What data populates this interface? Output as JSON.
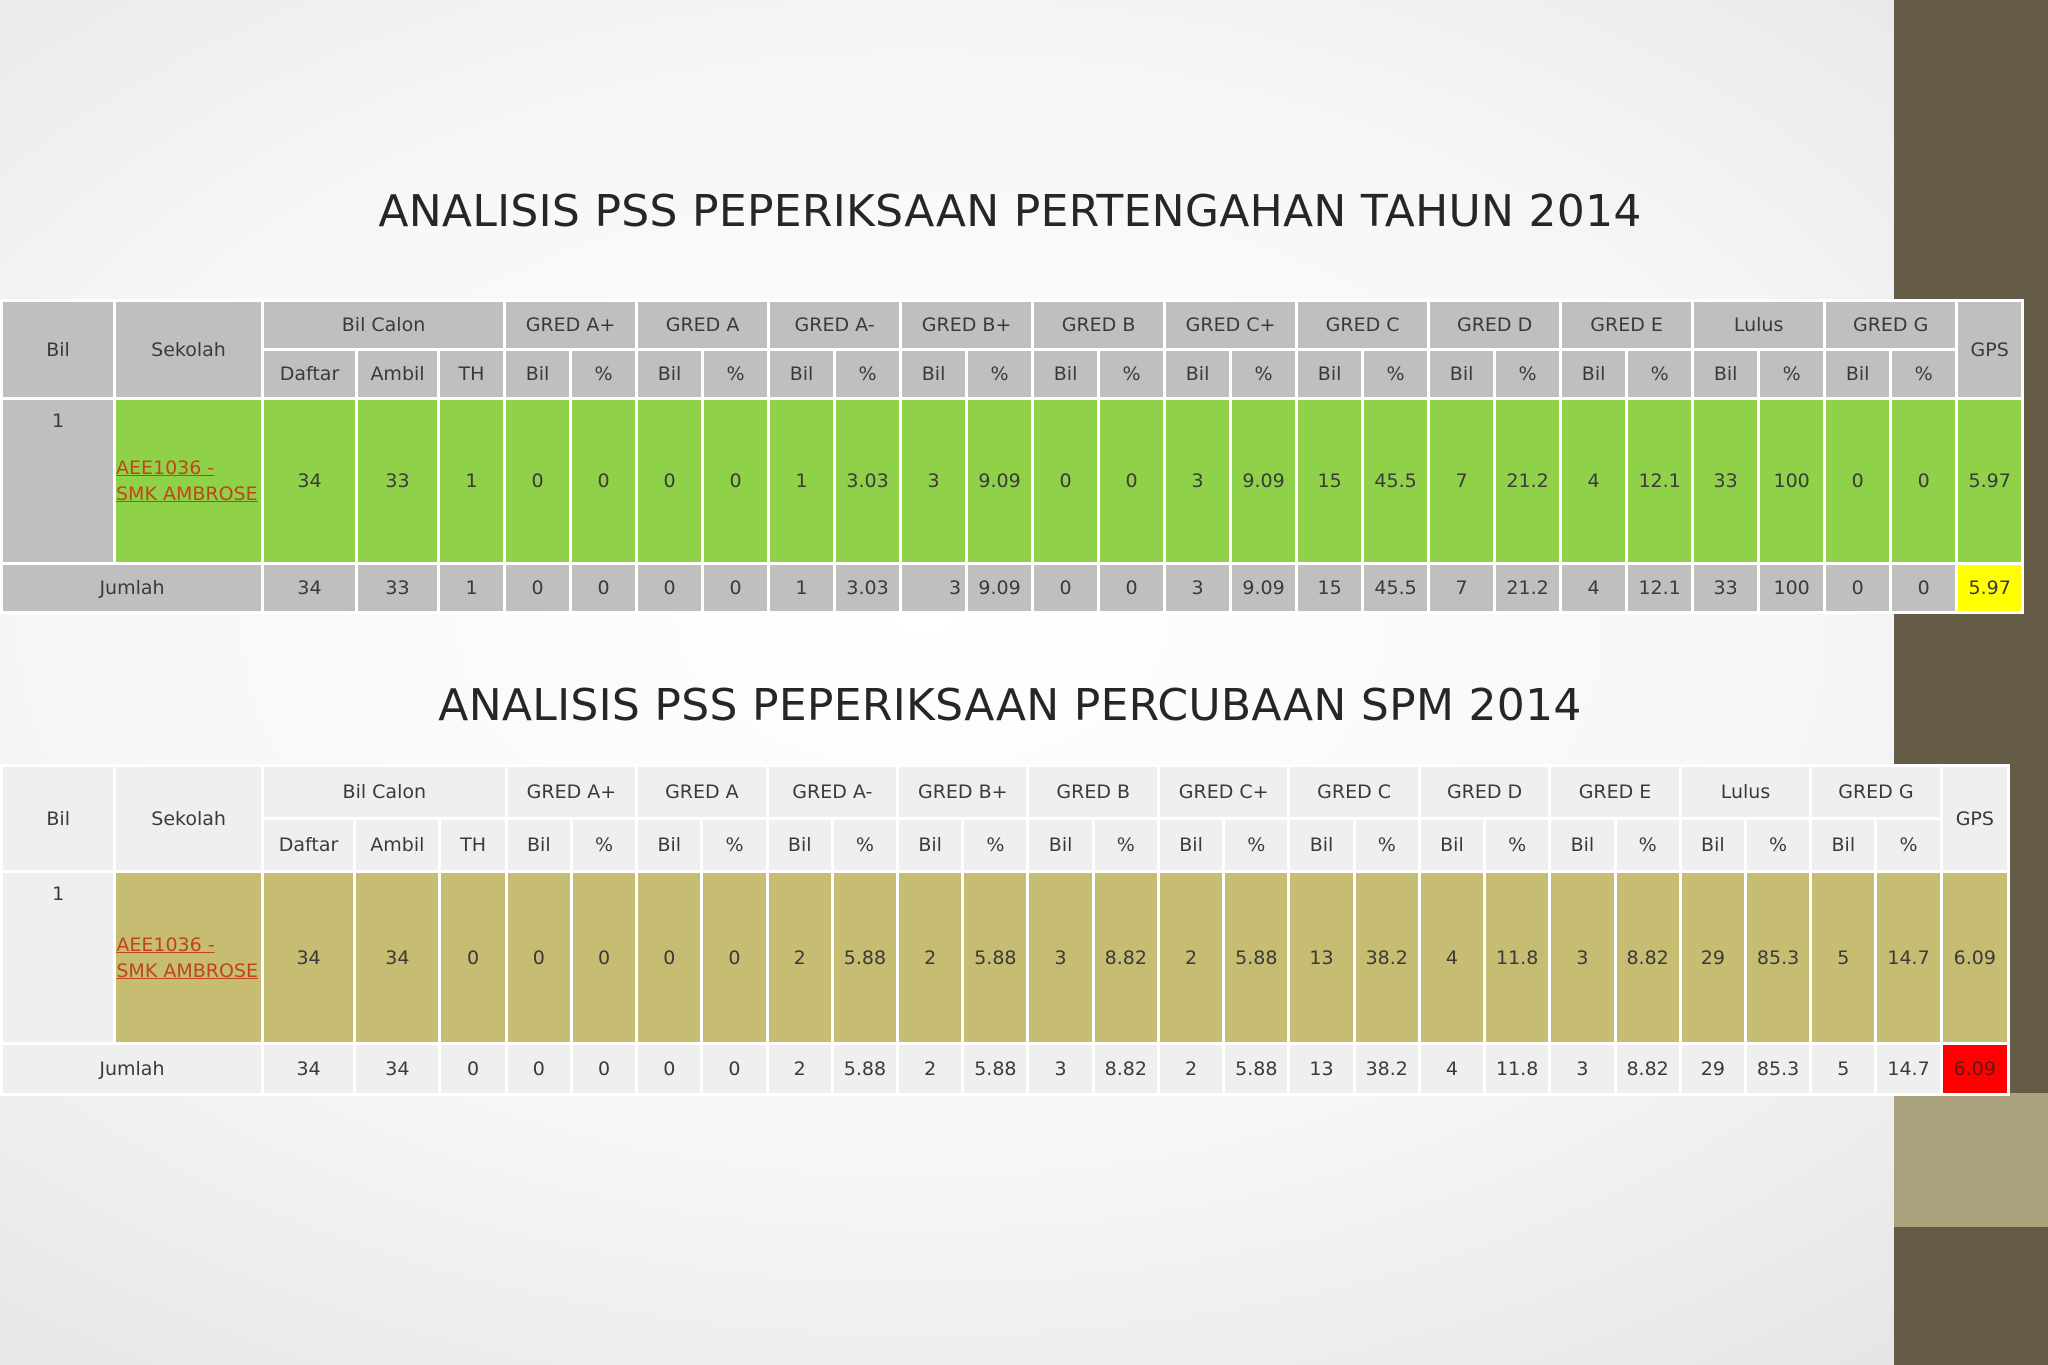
{
  "slide": {
    "title1": "ANALISIS PSS PEPERIKSAAN PERTENGAHAN TAHUN 2014",
    "title2": "ANALISIS PSS PEPERIKSAAN PERCUBAAN SPM 2014"
  },
  "headers": {
    "bil": "Bil",
    "sekolah": "Sekolah",
    "bil_calon": "Bil Calon",
    "gps": "GPS",
    "groups": [
      "GRED A+",
      "GRED A",
      "GRED A-",
      "GRED B+",
      "GRED B",
      "GRED C+",
      "GRED C",
      "GRED D",
      "GRED E",
      "Lulus",
      "GRED G"
    ],
    "daftar": "Daftar",
    "ambil": "Ambil",
    "th": "TH",
    "sub_bil": "Bil",
    "sub_pct": "%"
  },
  "table1": {
    "row": {
      "bil": "1",
      "school": "AEE1036 - SMK AMBROSE",
      "cells": [
        "34",
        "33",
        "1",
        "0",
        "0",
        "0",
        "0",
        "1",
        "3.03",
        "3",
        "9.09",
        "0",
        "0",
        "3",
        "9.09",
        "15",
        "45.5",
        "7",
        "21.2",
        "4",
        "12.1",
        "33",
        "100",
        "0",
        "0",
        "5.97"
      ]
    },
    "total": {
      "label": "Jumlah",
      "cells": [
        "34",
        "33",
        "1",
        "0",
        "0",
        "0",
        "0",
        "1",
        "3.03",
        "3",
        "9.09",
        "0",
        "0",
        "3",
        "9.09",
        "15",
        "45.5",
        "7",
        "21.2",
        "4",
        "12.1",
        "33",
        "100",
        "0",
        "0",
        "5.97"
      ]
    },
    "colors": {
      "header": "#bfbfbf",
      "data": "#8fd24a",
      "gps_highlight": "#ffff00"
    }
  },
  "table2": {
    "row": {
      "bil": "1",
      "school": "AEE1036 - SMK AMBROSE",
      "cells": [
        "34",
        "34",
        "0",
        "0",
        "0",
        "0",
        "0",
        "2",
        "5.88",
        "2",
        "5.88",
        "3",
        "8.82",
        "2",
        "5.88",
        "13",
        "38.2",
        "4",
        "11.8",
        "3",
        "8.82",
        "29",
        "85.3",
        "5",
        "14.7",
        "6.09"
      ]
    },
    "total": {
      "label": "Jumlah",
      "cells": [
        "34",
        "34",
        "0",
        "0",
        "0",
        "0",
        "0",
        "2",
        "5.88",
        "2",
        "5.88",
        "3",
        "8.82",
        "2",
        "5.88",
        "13",
        "38.2",
        "4",
        "11.8",
        "3",
        "8.82",
        "29",
        "85.3",
        "5",
        "14.7",
        "6.09"
      ]
    },
    "colors": {
      "header": "#efefef",
      "data": "#c6bd72",
      "gps_highlight": "#ff0000"
    }
  }
}
